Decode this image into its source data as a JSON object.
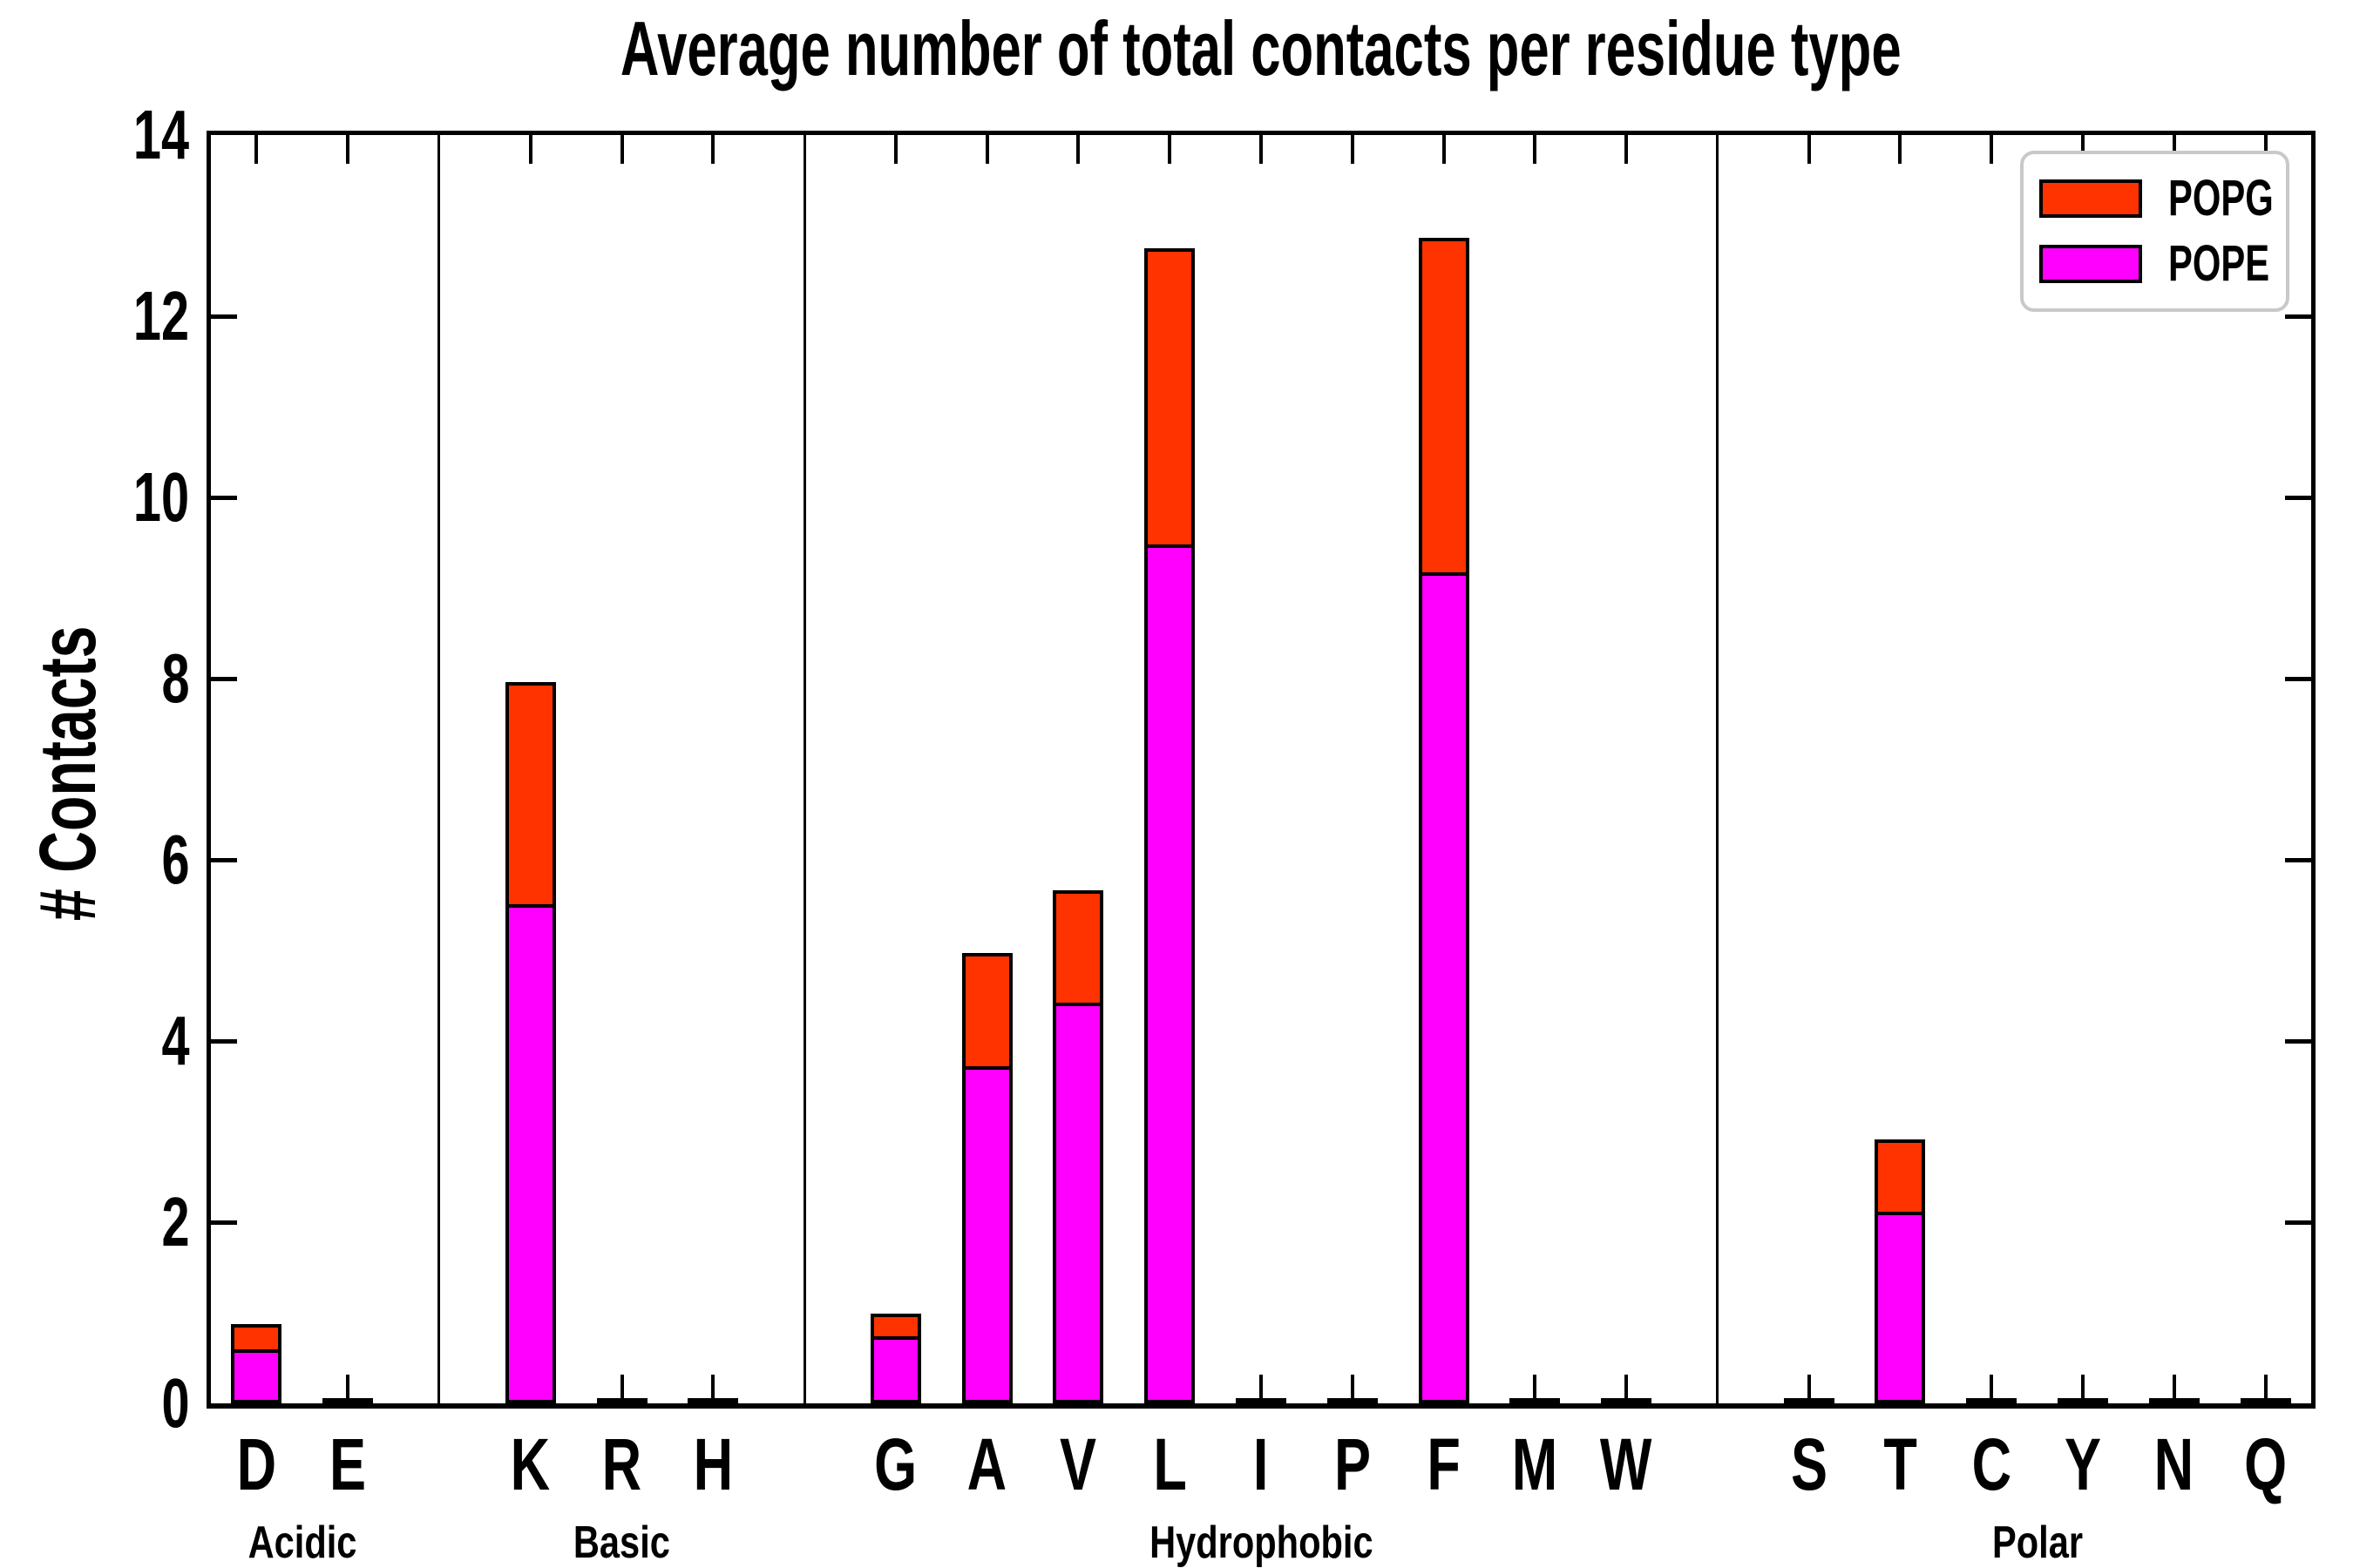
{
  "title": "Average number of total contacts per residue type",
  "y_axis": {
    "label": "# Contacts",
    "min": 0,
    "max": 14,
    "tick_step": 2,
    "tick_labels": [
      "0",
      "2",
      "4",
      "6",
      "8",
      "10",
      "12",
      "14"
    ]
  },
  "legend": {
    "position": "upper right",
    "entries": [
      {
        "label": "POPG",
        "color": "#ff3300"
      },
      {
        "label": "POPE",
        "color": "#ff00ff"
      }
    ]
  },
  "colors": {
    "popg": "#ff3300",
    "pope": "#ff00ff",
    "edge": "#000000",
    "legend_border": "#c9c9c9",
    "background": "#ffffff"
  },
  "chart_data": {
    "type": "bar",
    "stacked": true,
    "title": "Average number of total contacts per residue type",
    "xlabel": "",
    "ylabel": "# Contacts",
    "ylim": [
      0,
      14
    ],
    "yticks": [
      0,
      2,
      4,
      6,
      8,
      10,
      12,
      14
    ],
    "grid": false,
    "legend_position": "upper right",
    "categories": [
      "D",
      "E",
      "K",
      "R",
      "H",
      "G",
      "A",
      "V",
      "L",
      "I",
      "P",
      "F",
      "M",
      "W",
      "S",
      "T",
      "C",
      "Y",
      "N",
      "Q"
    ],
    "groups": [
      {
        "label": "Acidic",
        "residues": [
          "D",
          "E"
        ]
      },
      {
        "label": "Basic",
        "residues": [
          "K",
          "R",
          "H"
        ]
      },
      {
        "label": "Hydrophobic",
        "residues": [
          "G",
          "A",
          "V",
          "L",
          "I",
          "P",
          "F",
          "M",
          "W"
        ]
      },
      {
        "label": "Polar",
        "residues": [
          "S",
          "T",
          "C",
          "Y",
          "N",
          "Q"
        ]
      }
    ],
    "series": [
      {
        "name": "POPE",
        "color": "#ff00ff",
        "values": [
          0.6,
          0,
          5.51,
          0,
          0,
          0.74,
          3.72,
          4.42,
          9.48,
          0,
          0,
          9.17,
          0,
          0,
          0,
          2.12,
          0,
          0,
          0,
          0
        ]
      },
      {
        "name": "POPG",
        "color": "#ff3300",
        "values": [
          0.31,
          0,
          2.49,
          0,
          0,
          0.29,
          1.29,
          1.28,
          3.31,
          0,
          0,
          3.73,
          0,
          0,
          0,
          0.83,
          0,
          0,
          0,
          0
        ]
      }
    ],
    "totals": [
      0.91,
      0,
      8.0,
      0,
      0,
      1.03,
      5.01,
      5.7,
      12.79,
      0,
      0,
      12.9,
      0,
      0,
      0,
      2.95,
      0,
      0,
      0,
      0
    ]
  }
}
